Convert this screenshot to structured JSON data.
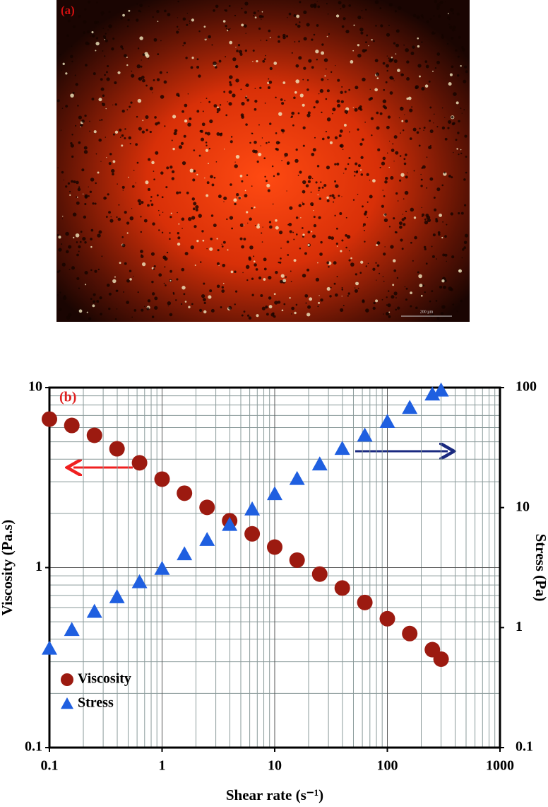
{
  "panel_a": {
    "label": "(a)",
    "scale_bar": "200 µm"
  },
  "chart_data": {
    "type": "scatter",
    "panel_label": "(b)",
    "x_label": "Shear rate (s⁻¹)",
    "y_label": "Viscosity (Pa.s)",
    "y2_label": "Stress (Pa)",
    "x": [
      0.1,
      0.158,
      0.251,
      0.398,
      0.631,
      1,
      1.58,
      2.51,
      3.98,
      6.31,
      10,
      15.8,
      25.1,
      39.8,
      63.1,
      100,
      158,
      251,
      300
    ],
    "series": [
      {
        "name": "Viscosity",
        "color": "#9c1a10",
        "marker": "circle",
        "values": [
          6.68,
          6.16,
          5.43,
          4.57,
          3.82,
          3.1,
          2.59,
          2.16,
          1.82,
          1.54,
          1.3,
          1.1,
          0.92,
          0.77,
          0.64,
          0.52,
          0.43,
          0.35,
          0.31
        ]
      },
      {
        "name": "Stress",
        "color": "#1f5fe0",
        "marker": "triangle",
        "axis": "y2",
        "values": [
          0.67,
          0.96,
          1.36,
          1.8,
          2.4,
          3.1,
          4.1,
          5.4,
          7.2,
          9.7,
          13,
          17.4,
          23,
          31,
          40,
          52,
          68,
          88,
          95
        ]
      }
    ],
    "log_x": true,
    "log_y": true,
    "grid": true,
    "legend": "lower left",
    "xlim": [
      0.1,
      1000
    ],
    "xticks": [
      0.1,
      1,
      10,
      100,
      1000
    ],
    "ylim": [
      0.1,
      10
    ],
    "yticks": [
      0.1,
      1,
      10
    ],
    "y2lim": [
      0.1,
      100
    ],
    "y2ticks": [
      0.1,
      1,
      10,
      100
    ]
  }
}
